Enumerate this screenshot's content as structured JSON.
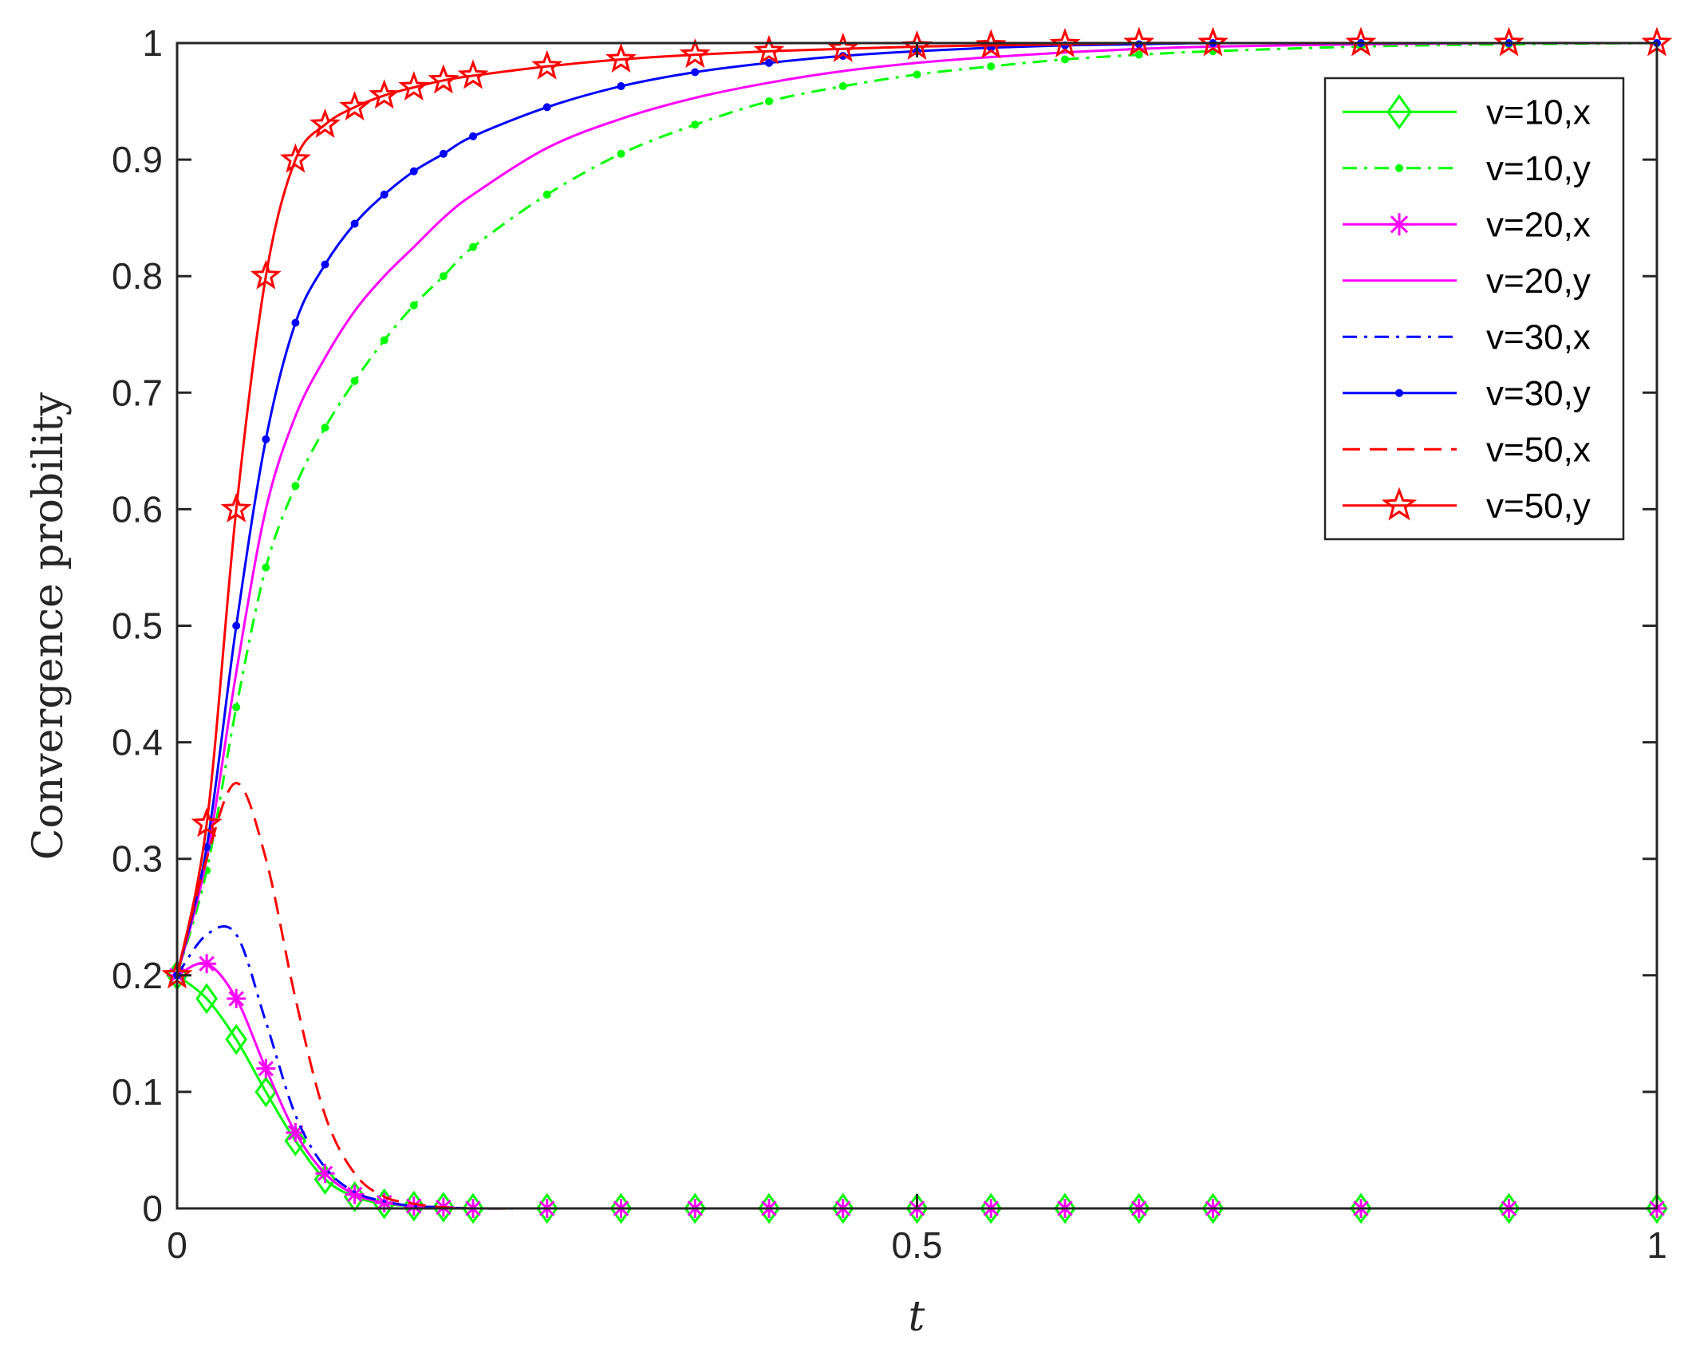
{
  "chart_data": {
    "type": "line",
    "title": "",
    "xlabel": "t",
    "ylabel": "Convergence probility",
    "xlim": [
      0,
      1
    ],
    "ylim": [
      0,
      1
    ],
    "xticks": [
      0,
      0.5,
      1
    ],
    "xtick_labels": [
      "0",
      "0.5",
      "1"
    ],
    "yticks": [
      0,
      0.1,
      0.2,
      0.3,
      0.4,
      0.5,
      0.6,
      0.7,
      0.8,
      0.9,
      1
    ],
    "ytick_labels": [
      "0",
      "0.1",
      "0.2",
      "0.3",
      "0.4",
      "0.5",
      "0.6",
      "0.7",
      "0.8",
      "0.9",
      "1"
    ],
    "grid": false,
    "legend_position": "top-right",
    "x": [
      0,
      0.02,
      0.04,
      0.06,
      0.08,
      0.1,
      0.12,
      0.14,
      0.16,
      0.18,
      0.2,
      0.25,
      0.3,
      0.35,
      0.4,
      0.45,
      0.5,
      0.55,
      0.6,
      0.65,
      0.7,
      0.8,
      0.9,
      1.0
    ],
    "series": [
      {
        "name": "v=10,x",
        "color": "#00ff00",
        "dash": "solid",
        "marker": "diamond",
        "values": [
          0.2,
          0.18,
          0.145,
          0.1,
          0.058,
          0.025,
          0.01,
          0.004,
          0.002,
          0.001,
          0,
          0,
          0,
          0,
          0,
          0,
          0,
          0,
          0,
          0,
          0,
          0,
          0,
          0
        ]
      },
      {
        "name": "v=10,y",
        "color": "#00ff00",
        "dash": "dashdot",
        "marker": "dot",
        "values": [
          0.2,
          0.29,
          0.43,
          0.55,
          0.62,
          0.67,
          0.71,
          0.745,
          0.775,
          0.8,
          0.825,
          0.87,
          0.905,
          0.93,
          0.95,
          0.963,
          0.973,
          0.98,
          0.986,
          0.99,
          0.993,
          0.997,
          0.999,
          1.0
        ]
      },
      {
        "name": "v=20,x",
        "color": "#ff00ff",
        "dash": "solid",
        "marker": "asterisk",
        "values": [
          0.2,
          0.21,
          0.18,
          0.12,
          0.065,
          0.03,
          0.012,
          0.005,
          0.002,
          0.001,
          0,
          0,
          0,
          0,
          0,
          0,
          0,
          0,
          0,
          0,
          0,
          0,
          0,
          0
        ]
      },
      {
        "name": "v=20,y",
        "color": "#ff00ff",
        "dash": "solid",
        "marker": "none",
        "values": [
          0.2,
          0.3,
          0.46,
          0.6,
          0.68,
          0.73,
          0.77,
          0.8,
          0.825,
          0.85,
          0.87,
          0.91,
          0.935,
          0.953,
          0.966,
          0.976,
          0.983,
          0.988,
          0.992,
          0.995,
          0.997,
          0.999,
          1.0,
          1.0
        ]
      },
      {
        "name": "v=30,x",
        "color": "#0000ff",
        "dash": "dashdot",
        "marker": "none",
        "values": [
          0.2,
          0.235,
          0.235,
          0.16,
          0.08,
          0.035,
          0.014,
          0.006,
          0.002,
          0.001,
          0,
          0,
          0,
          0,
          0,
          0,
          0,
          0,
          0,
          0,
          0,
          0,
          0,
          0
        ]
      },
      {
        "name": "v=30,y",
        "color": "#0000ff",
        "dash": "solid",
        "marker": "dot",
        "values": [
          0.2,
          0.31,
          0.5,
          0.66,
          0.76,
          0.81,
          0.845,
          0.87,
          0.89,
          0.905,
          0.92,
          0.945,
          0.963,
          0.975,
          0.983,
          0.989,
          0.993,
          0.996,
          0.998,
          0.999,
          1.0,
          1.0,
          1.0,
          1.0
        ]
      },
      {
        "name": "v=50,x",
        "color": "#ff0000",
        "dash": "dashed",
        "marker": "none",
        "values": [
          0.2,
          0.3,
          0.365,
          0.3,
          0.18,
          0.08,
          0.03,
          0.01,
          0.004,
          0.001,
          0,
          0,
          0,
          0,
          0,
          0,
          0,
          0,
          0,
          0,
          0,
          0,
          0,
          0
        ]
      },
      {
        "name": "v=50,y",
        "color": "#ff0000",
        "dash": "solid",
        "marker": "star",
        "values": [
          0.2,
          0.33,
          0.6,
          0.8,
          0.9,
          0.93,
          0.945,
          0.955,
          0.962,
          0.968,
          0.972,
          0.98,
          0.986,
          0.99,
          0.993,
          0.995,
          0.997,
          0.998,
          0.999,
          1.0,
          1.0,
          1.0,
          1.0,
          1.0
        ]
      }
    ]
  }
}
